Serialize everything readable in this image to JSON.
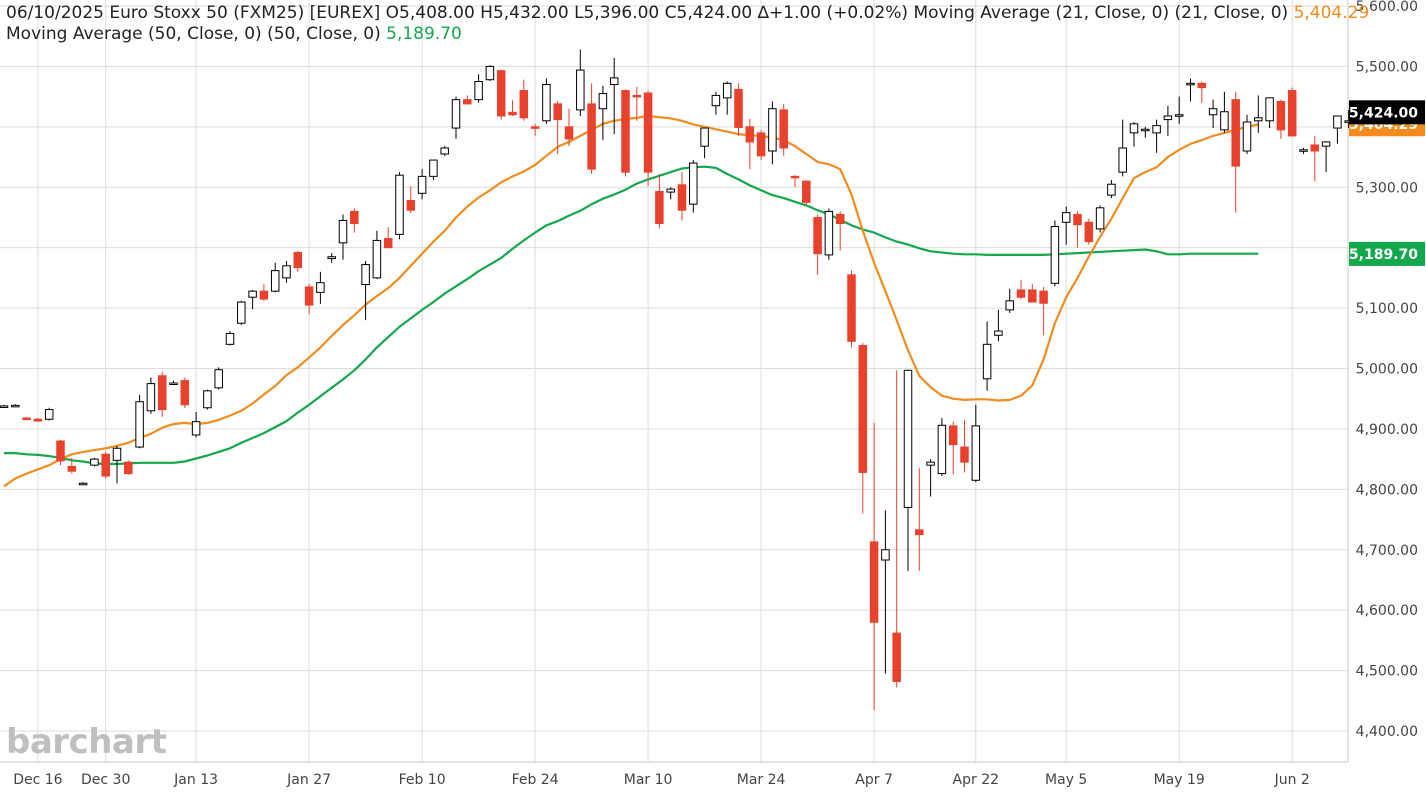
{
  "legend": {
    "date": "06/10/2025",
    "name": "Euro Stoxx 50 (FXM25) [EUREX]",
    "open": "O5,408.00",
    "high": "H5,432.00",
    "low": "L5,396.00",
    "close": "C5,424.00",
    "change": "∆+1.00 (+0.02%)",
    "ma21_label": "Moving Average (21, Close, 0)  (21, Close, 0)",
    "ma21_value": "5,404.29",
    "ma50_label": "Moving Average (50, Close, 0)  (50, Close, 0)",
    "ma50_value": "5,189.70"
  },
  "logo": "barchart",
  "colors": {
    "up": "#000000",
    "down": "#e8412c",
    "ma21": "#f28c1e",
    "ma50": "#13a84b",
    "grid": "#dcdcdc",
    "last_price_bg": "#000000",
    "ma50_badge": "#13a84b"
  },
  "chart_data": {
    "type": "candlestick",
    "title": "Euro Stoxx 50 (FXM25) [EUREX]",
    "ylim": [
      4375,
      5608
    ],
    "y_ticks": [
      4400,
      4500,
      4600,
      4700,
      4800,
      4900,
      5000,
      5100,
      5200,
      5300,
      5400,
      5500,
      5600
    ],
    "y_tick_labels": [
      "4,400.00",
      "4,500.00",
      "4,600.00",
      "4,700.00",
      "4,800.00",
      "4,900.00",
      "5,000.00",
      "5,100.00",
      "5,200.00",
      "5,300.00",
      "5,400.00",
      "5,500.00",
      "5,600.00"
    ],
    "x_tick_labels": [
      {
        "label": "Dec 16",
        "index": 3
      },
      {
        "label": "Dec 30",
        "index": 9
      },
      {
        "label": "Jan 13",
        "index": 17
      },
      {
        "label": "Jan 27",
        "index": 27
      },
      {
        "label": "Feb 10",
        "index": 37
      },
      {
        "label": "Feb 24",
        "index": 47
      },
      {
        "label": "Mar 10",
        "index": 57
      },
      {
        "label": "Mar 24",
        "index": 67
      },
      {
        "label": "Apr 7",
        "index": 77
      },
      {
        "label": "Apr 22",
        "index": 86
      },
      {
        "label": "May 5",
        "index": 94
      },
      {
        "label": "May 19",
        "index": 104
      },
      {
        "label": "Jun 2",
        "index": 114
      }
    ],
    "last_price": "5,424.00",
    "ma21_last": "5,404.29",
    "ma50_last": "5,189.70",
    "candles": [
      {
        "d": "Dec 10",
        "o": 4938,
        "h": 4940,
        "l": 4935,
        "c": 4938
      },
      {
        "d": "Dec 11",
        "o": 4939,
        "h": 4941,
        "l": 4937,
        "c": 4939
      },
      {
        "d": "Dec 12",
        "o": 4918,
        "h": 4920,
        "l": 4915,
        "c": 4917
      },
      {
        "d": "Dec 13",
        "o": 4916,
        "h": 4918,
        "l": 4912,
        "c": 4913
      },
      {
        "d": "Dec 16",
        "o": 4916,
        "h": 4935,
        "l": 4914,
        "c": 4932
      },
      {
        "d": "Dec 17",
        "o": 4880,
        "h": 4882,
        "l": 4840,
        "c": 4847
      },
      {
        "d": "Dec 18",
        "o": 4838,
        "h": 4852,
        "l": 4826,
        "c": 4830
      },
      {
        "d": "Dec 19",
        "o": 4810,
        "h": 4812,
        "l": 4808,
        "c": 4810
      },
      {
        "d": "Dec 20",
        "o": 4840,
        "h": 4852,
        "l": 4838,
        "c": 4850
      },
      {
        "d": "Dec 23",
        "o": 4858,
        "h": 4862,
        "l": 4818,
        "c": 4822
      },
      {
        "d": "Dec 27",
        "o": 4848,
        "h": 4872,
        "l": 4810,
        "c": 4868
      },
      {
        "d": "Dec 30",
        "o": 4845,
        "h": 4848,
        "l": 4824,
        "c": 4826
      },
      {
        "d": "Dec 31",
        "o": 4870,
        "h": 4956,
        "l": 4868,
        "c": 4945
      },
      {
        "d": "Jan 2",
        "o": 4930,
        "h": 4985,
        "l": 4925,
        "c": 4975
      },
      {
        "d": "Jan 3",
        "o": 4988,
        "h": 4995,
        "l": 4920,
        "c": 4932
      },
      {
        "d": "Jan 6",
        "o": 4975,
        "h": 4980,
        "l": 4973,
        "c": 4976
      },
      {
        "d": "Jan 7",
        "o": 4980,
        "h": 4985,
        "l": 4935,
        "c": 4940
      },
      {
        "d": "Jan 8",
        "o": 4890,
        "h": 4928,
        "l": 4886,
        "c": 4912
      },
      {
        "d": "Jan 9",
        "o": 4935,
        "h": 4965,
        "l": 4932,
        "c": 4963
      },
      {
        "d": "Jan 10",
        "o": 4968,
        "h": 5002,
        "l": 4965,
        "c": 4998
      },
      {
        "d": "Jan 13",
        "o": 5040,
        "h": 5062,
        "l": 5038,
        "c": 5058
      },
      {
        "d": "Jan 14",
        "o": 5075,
        "h": 5112,
        "l": 5072,
        "c": 5110
      },
      {
        "d": "Jan 15",
        "o": 5118,
        "h": 5130,
        "l": 5098,
        "c": 5128
      },
      {
        "d": "Jan 16",
        "o": 5128,
        "h": 5140,
        "l": 5112,
        "c": 5115
      },
      {
        "d": "Jan 17",
        "o": 5128,
        "h": 5175,
        "l": 5126,
        "c": 5162
      },
      {
        "d": "Jan 20",
        "o": 5150,
        "h": 5178,
        "l": 5142,
        "c": 5170
      },
      {
        "d": "Jan 21",
        "o": 5192,
        "h": 5195,
        "l": 5160,
        "c": 5167
      },
      {
        "d": "Jan 22",
        "o": 5135,
        "h": 5140,
        "l": 5090,
        "c": 5105
      },
      {
        "d": "Jan 23",
        "o": 5126,
        "h": 5160,
        "l": 5107,
        "c": 5142
      },
      {
        "d": "Jan 24",
        "o": 5182,
        "h": 5191,
        "l": 5175,
        "c": 5185
      },
      {
        "d": "Jan 27",
        "o": 5208,
        "h": 5255,
        "l": 5180,
        "c": 5245
      },
      {
        "d": "Jan 28",
        "o": 5260,
        "h": 5265,
        "l": 5225,
        "c": 5240
      },
      {
        "d": "Jan 29",
        "o": 5139,
        "h": 5178,
        "l": 5080,
        "c": 5172
      },
      {
        "d": "Jan 30",
        "o": 5150,
        "h": 5228,
        "l": 5148,
        "c": 5212
      },
      {
        "d": "Jan 31",
        "o": 5215,
        "h": 5234,
        "l": 5199,
        "c": 5200
      },
      {
        "d": "Feb 3",
        "o": 5222,
        "h": 5325,
        "l": 5214,
        "c": 5320
      },
      {
        "d": "Feb 4",
        "o": 5278,
        "h": 5302,
        "l": 5257,
        "c": 5262
      },
      {
        "d": "Feb 5",
        "o": 5290,
        "h": 5330,
        "l": 5280,
        "c": 5318
      },
      {
        "d": "Feb 6",
        "o": 5318,
        "h": 5345,
        "l": 5312,
        "c": 5345
      },
      {
        "d": "Feb 7",
        "o": 5355,
        "h": 5368,
        "l": 5352,
        "c": 5365
      },
      {
        "d": "Feb 10",
        "o": 5398,
        "h": 5450,
        "l": 5380,
        "c": 5445
      },
      {
        "d": "Feb 11",
        "o": 5445,
        "h": 5452,
        "l": 5437,
        "c": 5438
      },
      {
        "d": "Feb 12",
        "o": 5445,
        "h": 5487,
        "l": 5440,
        "c": 5475
      },
      {
        "d": "Feb 13",
        "o": 5478,
        "h": 5502,
        "l": 5476,
        "c": 5500
      },
      {
        "d": "Feb 14",
        "o": 5493,
        "h": 5494,
        "l": 5412,
        "c": 5418
      },
      {
        "d": "Feb 17",
        "o": 5424,
        "h": 5444,
        "l": 5418,
        "c": 5420
      },
      {
        "d": "Feb 18",
        "o": 5460,
        "h": 5478,
        "l": 5410,
        "c": 5415
      },
      {
        "d": "Feb 19",
        "o": 5400,
        "h": 5405,
        "l": 5385,
        "c": 5398
      },
      {
        "d": "Feb 20",
        "o": 5410,
        "h": 5480,
        "l": 5405,
        "c": 5470
      },
      {
        "d": "Feb 21",
        "o": 5438,
        "h": 5443,
        "l": 5355,
        "c": 5412
      },
      {
        "d": "Feb 24",
        "o": 5400,
        "h": 5430,
        "l": 5368,
        "c": 5380
      },
      {
        "d": "Feb 25",
        "o": 5428,
        "h": 5528,
        "l": 5418,
        "c": 5494
      },
      {
        "d": "Feb 26",
        "o": 5438,
        "h": 5472,
        "l": 5322,
        "c": 5330
      },
      {
        "d": "Feb 27",
        "o": 5430,
        "h": 5468,
        "l": 5378,
        "c": 5455
      },
      {
        "d": "Feb 28",
        "o": 5470,
        "h": 5514,
        "l": 5388,
        "c": 5481
      },
      {
        "d": "Mar 3",
        "o": 5460,
        "h": 5462,
        "l": 5318,
        "c": 5325
      },
      {
        "d": "Mar 4",
        "o": 5452,
        "h": 5466,
        "l": 5410,
        "c": 5450
      },
      {
        "d": "Mar 5",
        "o": 5456,
        "h": 5460,
        "l": 5302,
        "c": 5325
      },
      {
        "d": "Mar 6",
        "o": 5293,
        "h": 5322,
        "l": 5232,
        "c": 5240
      },
      {
        "d": "Mar 7",
        "o": 5292,
        "h": 5300,
        "l": 5280,
        "c": 5297
      },
      {
        "d": "Mar 10",
        "o": 5304,
        "h": 5325,
        "l": 5245,
        "c": 5262
      },
      {
        "d": "Mar 11",
        "o": 5272,
        "h": 5345,
        "l": 5258,
        "c": 5340
      },
      {
        "d": "Mar 12",
        "o": 5368,
        "h": 5398,
        "l": 5348,
        "c": 5398
      },
      {
        "d": "Mar 13",
        "o": 5435,
        "h": 5458,
        "l": 5420,
        "c": 5452
      },
      {
        "d": "Mar 14",
        "o": 5448,
        "h": 5475,
        "l": 5420,
        "c": 5472
      },
      {
        "d": "Mar 17",
        "o": 5462,
        "h": 5472,
        "l": 5385,
        "c": 5399
      },
      {
        "d": "Mar 18",
        "o": 5400,
        "h": 5413,
        "l": 5330,
        "c": 5375
      },
      {
        "d": "Mar 19",
        "o": 5390,
        "h": 5395,
        "l": 5345,
        "c": 5352
      },
      {
        "d": "Mar 20",
        "o": 5360,
        "h": 5442,
        "l": 5338,
        "c": 5430
      },
      {
        "d": "Mar 21",
        "o": 5428,
        "h": 5438,
        "l": 5352,
        "c": 5365
      },
      {
        "d": "Mar 24",
        "o": 5318,
        "h": 5320,
        "l": 5300,
        "c": 5316
      },
      {
        "d": "Mar 25",
        "o": 5310,
        "h": 5312,
        "l": 5270,
        "c": 5275
      },
      {
        "d": "Mar 26",
        "o": 5250,
        "h": 5255,
        "l": 5155,
        "c": 5190
      },
      {
        "d": "Mar 27",
        "o": 5188,
        "h": 5265,
        "l": 5180,
        "c": 5260
      },
      {
        "d": "Mar 28",
        "o": 5255,
        "h": 5260,
        "l": 5195,
        "c": 5240
      },
      {
        "d": "Mar 31",
        "o": 5155,
        "h": 5162,
        "l": 5035,
        "c": 5045
      },
      {
        "d": "Apr 1",
        "o": 5038,
        "h": 5042,
        "l": 4760,
        "c": 4828
      },
      {
        "d": "Apr 2",
        "o": 4713,
        "h": 4910,
        "l": 4435,
        "c": 4580
      },
      {
        "d": "Apr 3",
        "o": 4683,
        "h": 4765,
        "l": 4495,
        "c": 4700
      },
      {
        "d": "Apr 4",
        "o": 4562,
        "h": 4997,
        "l": 4472,
        "c": 4482
      },
      {
        "d": "Apr 7",
        "o": 4770,
        "h": 4998,
        "l": 4665,
        "c": 4997
      },
      {
        "d": "Apr 8",
        "o": 4733,
        "h": 4835,
        "l": 4665,
        "c": 4725
      },
      {
        "d": "Apr 9",
        "o": 4840,
        "h": 4850,
        "l": 4788,
        "c": 4845
      },
      {
        "d": "Apr 10",
        "o": 4826,
        "h": 4918,
        "l": 4822,
        "c": 4906
      },
      {
        "d": "Apr 11",
        "o": 4905,
        "h": 4912,
        "l": 4825,
        "c": 4874
      },
      {
        "d": "Apr 14",
        "o": 4870,
        "h": 4915,
        "l": 4828,
        "c": 4845
      },
      {
        "d": "Apr 15",
        "o": 4815,
        "h": 4940,
        "l": 4812,
        "c": 4905
      },
      {
        "d": "Apr 16",
        "o": 4983,
        "h": 5078,
        "l": 4963,
        "c": 5040
      },
      {
        "d": "Apr 17",
        "o": 5055,
        "h": 5097,
        "l": 5045,
        "c": 5062
      },
      {
        "d": "Apr 22",
        "o": 5097,
        "h": 5132,
        "l": 5092,
        "c": 5112
      },
      {
        "d": "Apr 23",
        "o": 5130,
        "h": 5147,
        "l": 5115,
        "c": 5118
      },
      {
        "d": "Apr 24",
        "o": 5130,
        "h": 5140,
        "l": 5115,
        "c": 5110
      },
      {
        "d": "Apr 25",
        "o": 5128,
        "h": 5135,
        "l": 5055,
        "c": 5108
      },
      {
        "d": "Apr 28",
        "o": 5141,
        "h": 5245,
        "l": 5136,
        "c": 5235
      },
      {
        "d": "Apr 29",
        "o": 5242,
        "h": 5268,
        "l": 5205,
        "c": 5258
      },
      {
        "d": "Apr 30",
        "o": 5255,
        "h": 5260,
        "l": 5200,
        "c": 5238
      },
      {
        "d": "May 2",
        "o": 5242,
        "h": 5248,
        "l": 5205,
        "c": 5210
      },
      {
        "d": "May 5",
        "o": 5231,
        "h": 5270,
        "l": 5225,
        "c": 5266
      },
      {
        "d": "May 6",
        "o": 5287,
        "h": 5312,
        "l": 5282,
        "c": 5305
      },
      {
        "d": "May 7",
        "o": 5325,
        "h": 5412,
        "l": 5318,
        "c": 5365
      },
      {
        "d": "May 8",
        "o": 5390,
        "h": 5408,
        "l": 5367,
        "c": 5405
      },
      {
        "d": "May 9",
        "o": 5395,
        "h": 5400,
        "l": 5382,
        "c": 5396
      },
      {
        "d": "May 12",
        "o": 5390,
        "h": 5412,
        "l": 5357,
        "c": 5402
      },
      {
        "d": "May 13",
        "o": 5412,
        "h": 5435,
        "l": 5385,
        "c": 5418
      },
      {
        "d": "May 14",
        "o": 5420,
        "h": 5450,
        "l": 5405,
        "c": 5420
      },
      {
        "d": "May 15",
        "o": 5472,
        "h": 5480,
        "l": 5442,
        "c": 5472
      },
      {
        "d": "May 16",
        "o": 5472,
        "h": 5475,
        "l": 5440,
        "c": 5465
      },
      {
        "d": "May 19",
        "o": 5420,
        "h": 5445,
        "l": 5398,
        "c": 5430
      },
      {
        "d": "May 20",
        "o": 5395,
        "h": 5458,
        "l": 5390,
        "c": 5425
      },
      {
        "d": "May 21",
        "o": 5445,
        "h": 5458,
        "l": 5258,
        "c": 5335
      },
      {
        "d": "May 22",
        "o": 5360,
        "h": 5420,
        "l": 5355,
        "c": 5408
      },
      {
        "d": "May 23",
        "o": 5410,
        "h": 5452,
        "l": 5390,
        "c": 5415
      },
      {
        "d": "May 26",
        "o": 5410,
        "h": 5440,
        "l": 5398,
        "c": 5448
      },
      {
        "d": "May 27",
        "o": 5442,
        "h": 5445,
        "l": 5380,
        "c": 5395
      },
      {
        "d": "May 28",
        "o": 5460,
        "h": 5465,
        "l": 5384,
        "c": 5385
      },
      {
        "d": "May 30",
        "o": 5360,
        "h": 5365,
        "l": 5355,
        "c": 5362
      },
      {
        "d": "Jun 2",
        "o": 5370,
        "h": 5385,
        "l": 5310,
        "c": 5360
      },
      {
        "d": "Jun 3",
        "o": 5368,
        "h": 5376,
        "l": 5325,
        "c": 5375
      },
      {
        "d": "Jun 4",
        "o": 5398,
        "h": 5418,
        "l": 5372,
        "c": 5418
      },
      {
        "d": "Jun 5",
        "o": 5408,
        "h": 5428,
        "l": 5398,
        "c": 5410
      },
      {
        "d": "Jun 6",
        "o": 5398,
        "h": 5438,
        "l": 5392,
        "c": 5432
      },
      {
        "d": "Jun 9",
        "o": 5425,
        "h": 5428,
        "l": 5405,
        "c": 5423
      },
      {
        "d": "Jun 10",
        "o": 5408,
        "h": 5432,
        "l": 5396,
        "c": 5424
      }
    ],
    "ma21": [
      4805,
      4818,
      4826,
      4833,
      4840,
      4850,
      4858,
      4862,
      4865,
      4868,
      4872,
      4877,
      4885,
      4892,
      4902,
      4908,
      4910,
      4908,
      4910,
      4915,
      4922,
      4930,
      4942,
      4957,
      4971,
      4989,
      5002,
      5018,
      5035,
      5054,
      5072,
      5088,
      5106,
      5120,
      5133,
      5150,
      5170,
      5190,
      5210,
      5228,
      5250,
      5268,
      5283,
      5295,
      5308,
      5318,
      5326,
      5337,
      5352,
      5367,
      5375,
      5385,
      5395,
      5405,
      5410,
      5413,
      5415,
      5418,
      5416,
      5414,
      5410,
      5404,
      5400,
      5396,
      5392,
      5388,
      5386,
      5385,
      5382,
      5378,
      5368,
      5355,
      5342,
      5338,
      5330,
      5288,
      5228,
      5175,
      5128,
      5080,
      5030,
      4988,
      4969,
      4955,
      4950,
      4948,
      4949,
      4949,
      4947,
      4948,
      4955,
      4972,
      5015,
      5075,
      5118,
      5150,
      5185,
      5218,
      5248,
      5282,
      5315,
      5325,
      5333,
      5350,
      5362,
      5372,
      5378,
      5385,
      5390,
      5395,
      5400,
      5404
    ],
    "ma50": [
      4860,
      4860,
      4858,
      4857,
      4855,
      4852,
      4848,
      4846,
      4843,
      4842,
      4842,
      4843,
      4844,
      4844,
      4844,
      4844,
      4846,
      4851,
      4856,
      4862,
      4868,
      4877,
      4885,
      4893,
      4903,
      4913,
      4927,
      4940,
      4954,
      4968,
      4982,
      4997,
      5015,
      5035,
      5052,
      5069,
      5083,
      5097,
      5110,
      5124,
      5136,
      5148,
      5161,
      5172,
      5183,
      5198,
      5212,
      5225,
      5237,
      5244,
      5253,
      5261,
      5272,
      5281,
      5288,
      5296,
      5306,
      5313,
      5319,
      5325,
      5331,
      5333,
      5334,
      5332,
      5322,
      5313,
      5303,
      5295,
      5287,
      5282,
      5276,
      5270,
      5262,
      5255,
      5246,
      5237,
      5230,
      5225,
      5217,
      5210,
      5205,
      5199,
      5194,
      5192,
      5190,
      5189,
      5189,
      5188,
      5188,
      5188,
      5188,
      5188,
      5188,
      5189,
      5190,
      5191,
      5192,
      5193,
      5194,
      5195,
      5196,
      5197,
      5194,
      5189,
      5189,
      5190,
      5190,
      5190,
      5190,
      5190,
      5190,
      5190
    ]
  }
}
